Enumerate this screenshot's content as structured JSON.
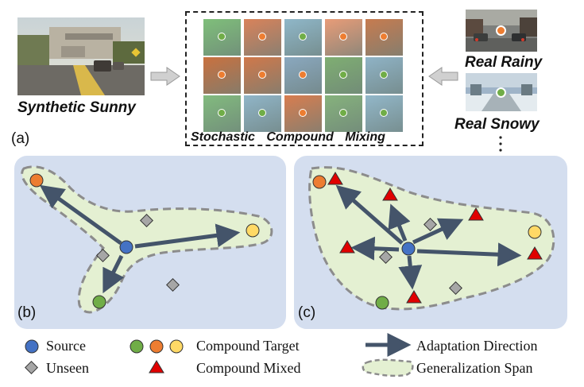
{
  "top": {
    "synthetic_label": "Synthetic Sunny",
    "real_rainy_label": "Real Rainy",
    "real_snowy_label": "Real Snowy",
    "mosaic_caption": [
      "Stochastic",
      "Compound",
      "Mixing"
    ],
    "panel_a_label": "(a)"
  },
  "panels": {
    "b_label": "(b)",
    "c_label": "(c)"
  },
  "legend": {
    "source": "Source",
    "unseen": "Unseen",
    "compound_target": "Compound Target",
    "compound_mixed": "Compound Mixed",
    "adaptation_direction": "Adaptation Direction",
    "generalization_span": "Generalization  Span"
  },
  "colors": {
    "panel_bg": "#d4deef",
    "span_fill": "#e4f0d2",
    "span_border": "#8c8c8c",
    "arrow": "#44546a",
    "source": "#4472c4",
    "target_green": "#70ad47",
    "target_orange": "#ed7d31",
    "target_yellow": "#ffd966",
    "mixed_red": "#e00000",
    "unseen": "#a6a6a6"
  }
}
